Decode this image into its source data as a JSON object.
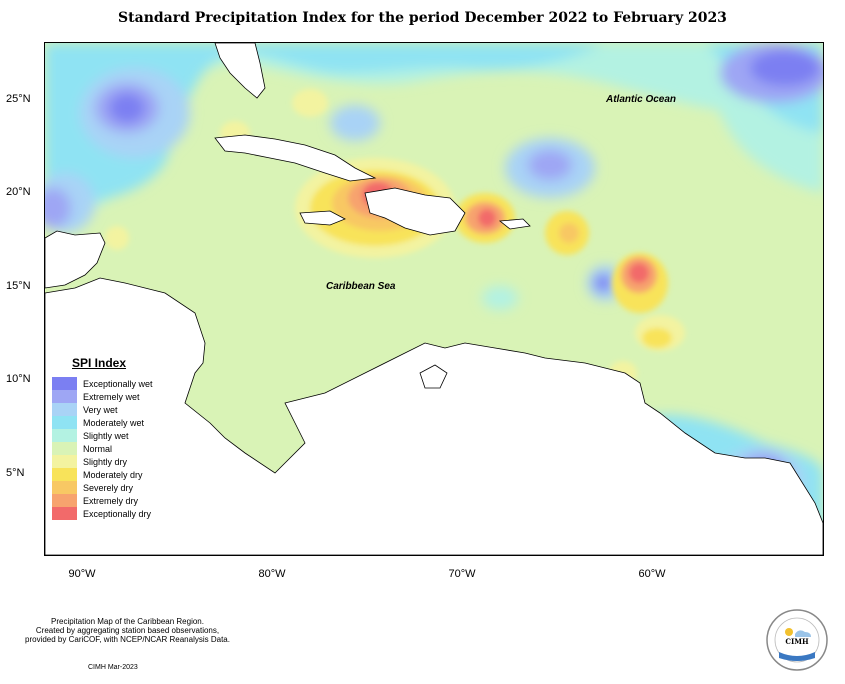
{
  "title": "Standard Precipitation Index for the period December 2022 to February 2023",
  "x_ticks": [
    "90°W",
    "80°W",
    "70°W",
    "60°W"
  ],
  "y_ticks": [
    "25°N",
    "20°N",
    "15°N",
    "10°N",
    "5°N"
  ],
  "map_labels": {
    "atlantic": "Atlantic Ocean",
    "caribbean": "Caribbean Sea"
  },
  "legend": {
    "title": "SPI Index",
    "items": [
      {
        "label": "Exceptionally wet",
        "color": "#7b7ff2"
      },
      {
        "label": "Extremely wet",
        "color": "#9ea6f4"
      },
      {
        "label": "Very wet",
        "color": "#a9d3f6"
      },
      {
        "label": "Moderately wet",
        "color": "#8fe3f3"
      },
      {
        "label": "Slightly wet",
        "color": "#b3f2e2"
      },
      {
        "label": "Normal",
        "color": "#d9f3b6"
      },
      {
        "label": "Slightly dry",
        "color": "#f3f3a0"
      },
      {
        "label": "Moderately dry",
        "color": "#f8e35a"
      },
      {
        "label": "Severely dry",
        "color": "#f8c864"
      },
      {
        "label": "Extremely dry",
        "color": "#f7a36e"
      },
      {
        "label": "Exceptionally dry",
        "color": "#f26a6a"
      }
    ]
  },
  "footer": {
    "line1": "Precipitation Map of the Caribbean Region.",
    "line2": "Created by aggregating station based observations,",
    "line3": "provided by CariCOF, with NCEP/NCAR Reanalysis Data.",
    "date": "CIMH Mar-2023"
  },
  "logo": {
    "text": "CIMH"
  }
}
